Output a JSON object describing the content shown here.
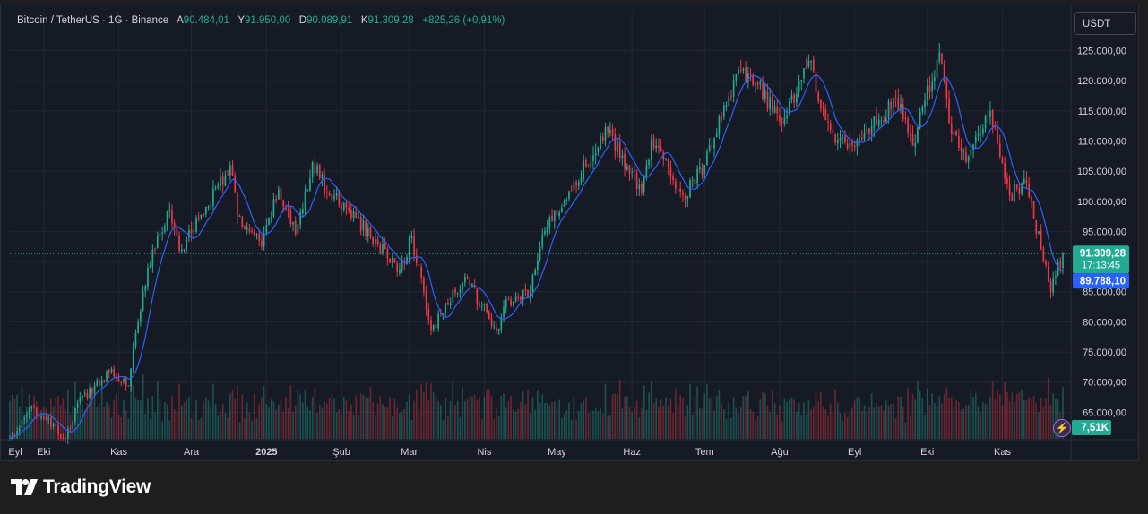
{
  "header": {
    "symbol": "Bitcoin / TetherUS · 1G · Binance",
    "open_label": "A",
    "open_value": "90.484,01",
    "high_label": "Y",
    "high_value": "91.950,00",
    "low_label": "D",
    "low_value": "90.089,91",
    "close_label": "K",
    "close_value": "91.309,28",
    "change": "+825,26 (+0,91%)"
  },
  "currency_button": "USDT",
  "brand": "TradingView",
  "badges": {
    "price": "91.309,28",
    "countdown": "17:13:45",
    "ma": "89.788,10",
    "volume": "7,51K"
  },
  "colors": {
    "up": "#22ab94",
    "down": "#f23645",
    "ma": "#2962ff",
    "background": "#161a25",
    "grid": "#232733",
    "text": "#d1d4dc"
  },
  "chart_data": {
    "type": "candlestick",
    "symbol": "Bitcoin / TetherUS",
    "interval": "1G",
    "exchange": "Binance",
    "x_range": [
      "2024-09-17",
      "2025-11-26"
    ],
    "x_ticks": [
      {
        "date": "2024-09-01",
        "label": "Eyl"
      },
      {
        "date": "2024-10-01",
        "label": "Eki"
      },
      {
        "date": "2024-11-01",
        "label": "Kas"
      },
      {
        "date": "2024-12-01",
        "label": "Ara"
      },
      {
        "date": "2025-01-01",
        "label": "2025"
      },
      {
        "date": "2025-02-01",
        "label": "Şub"
      },
      {
        "date": "2025-03-01",
        "label": "Mar"
      },
      {
        "date": "2025-04-01",
        "label": "Nis"
      },
      {
        "date": "2025-05-01",
        "label": "May"
      },
      {
        "date": "2025-06-01",
        "label": "Haz"
      },
      {
        "date": "2025-07-01",
        "label": "Tem"
      },
      {
        "date": "2025-08-01",
        "label": "Ağu"
      },
      {
        "date": "2025-09-01",
        "label": "Eyl"
      },
      {
        "date": "2025-10-01",
        "label": "Eki"
      },
      {
        "date": "2025-11-01",
        "label": "Kas"
      }
    ],
    "y_ticks": [
      {
        "value": 65000,
        "label": "65.000,00"
      },
      {
        "value": 70000,
        "label": "70.000,00"
      },
      {
        "value": 75000,
        "label": "75.000,00"
      },
      {
        "value": 80000,
        "label": "80.000,00"
      },
      {
        "value": 85000,
        "label": "85.000,00"
      },
      {
        "value": 90000,
        "label": "90.000,00"
      },
      {
        "value": 95000,
        "label": "95.000,00"
      },
      {
        "value": 100000,
        "label": "100.000,00"
      },
      {
        "value": 105000,
        "label": "105.000,00"
      },
      {
        "value": 110000,
        "label": "110.000,00"
      },
      {
        "value": 115000,
        "label": "115.000,00"
      },
      {
        "value": 120000,
        "label": "120.000,00"
      },
      {
        "value": 125000,
        "label": "125.000,00"
      }
    ],
    "y_range": [
      60600,
      127300
    ],
    "grid": true,
    "last_close": 91309.28,
    "ma_last": 89788.1,
    "close_anchors": [
      {
        "date": "2024-09-17",
        "close": 60500
      },
      {
        "date": "2024-09-27",
        "close": 65800
      },
      {
        "date": "2024-10-10",
        "close": 60300
      },
      {
        "date": "2024-10-15",
        "close": 66500
      },
      {
        "date": "2024-10-29",
        "close": 72200
      },
      {
        "date": "2024-11-05",
        "close": 69400
      },
      {
        "date": "2024-11-07",
        "close": 75800
      },
      {
        "date": "2024-11-13",
        "close": 89000
      },
      {
        "date": "2024-11-22",
        "close": 98500
      },
      {
        "date": "2024-11-26",
        "close": 91800
      },
      {
        "date": "2024-12-05",
        "close": 97800
      },
      {
        "date": "2024-12-17",
        "close": 106000
      },
      {
        "date": "2024-12-20",
        "close": 97500
      },
      {
        "date": "2024-12-30",
        "close": 92500
      },
      {
        "date": "2025-01-06",
        "close": 102000
      },
      {
        "date": "2025-01-13",
        "close": 94500
      },
      {
        "date": "2025-01-20",
        "close": 106500
      },
      {
        "date": "2025-01-27",
        "close": 101000
      },
      {
        "date": "2025-02-03",
        "close": 99000
      },
      {
        "date": "2025-02-25",
        "close": 88500
      },
      {
        "date": "2025-03-02",
        "close": 94200
      },
      {
        "date": "2025-03-10",
        "close": 78500
      },
      {
        "date": "2025-03-24",
        "close": 87500
      },
      {
        "date": "2025-04-06",
        "close": 78400
      },
      {
        "date": "2025-04-09",
        "close": 82500
      },
      {
        "date": "2025-04-20",
        "close": 85000
      },
      {
        "date": "2025-04-25",
        "close": 94500
      },
      {
        "date": "2025-05-08",
        "close": 103200
      },
      {
        "date": "2025-05-22",
        "close": 111500
      },
      {
        "date": "2025-06-05",
        "close": 101500
      },
      {
        "date": "2025-06-09",
        "close": 110200
      },
      {
        "date": "2025-06-22",
        "close": 101000
      },
      {
        "date": "2025-07-01",
        "close": 106000
      },
      {
        "date": "2025-07-10",
        "close": 116000
      },
      {
        "date": "2025-07-14",
        "close": 121000
      },
      {
        "date": "2025-07-22",
        "close": 119500
      },
      {
        "date": "2025-08-02",
        "close": 113000
      },
      {
        "date": "2025-08-13",
        "close": 123300
      },
      {
        "date": "2025-08-20",
        "close": 113500
      },
      {
        "date": "2025-08-25",
        "close": 110200
      },
      {
        "date": "2025-09-01",
        "close": 109000
      },
      {
        "date": "2025-09-18",
        "close": 117000
      },
      {
        "date": "2025-09-25",
        "close": 109300
      },
      {
        "date": "2025-10-06",
        "close": 124700
      },
      {
        "date": "2025-10-10",
        "close": 113000
      },
      {
        "date": "2025-10-17",
        "close": 106500
      },
      {
        "date": "2025-10-27",
        "close": 115000
      },
      {
        "date": "2025-11-04",
        "close": 101000
      },
      {
        "date": "2025-11-11",
        "close": 103000
      },
      {
        "date": "2025-11-17",
        "close": 92000
      },
      {
        "date": "2025-11-21",
        "close": 85000
      },
      {
        "date": "2025-11-26",
        "close": 91309
      }
    ],
    "volume_last": "7,51K"
  }
}
